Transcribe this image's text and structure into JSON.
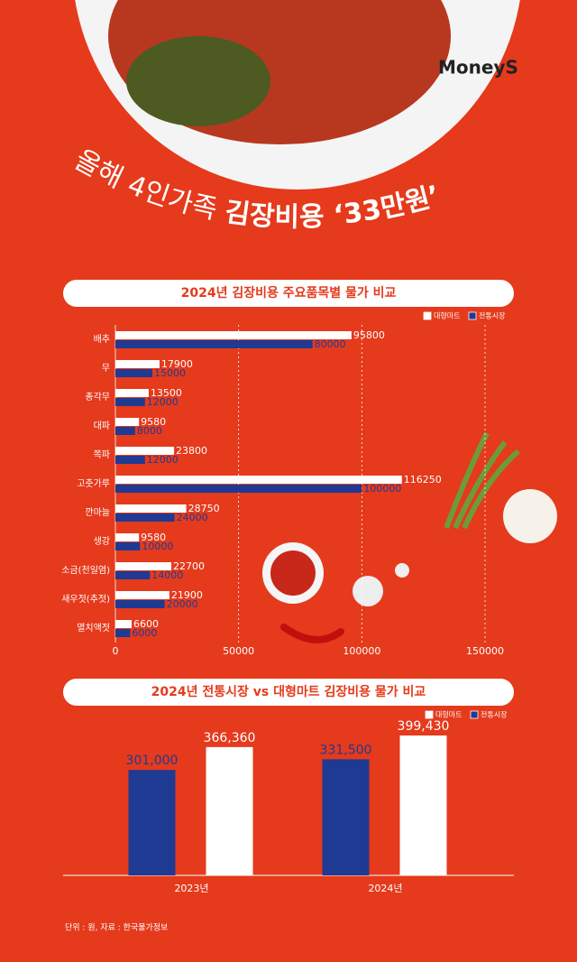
{
  "header": {
    "logo": "MoneyS",
    "title_light": "올해 4인가족 ",
    "title_bold": "김장비용 ‘33만원’"
  },
  "chart_data": [
    {
      "type": "hbar",
      "title": "2024년 김장비용 주요품목별 물가 비교",
      "categories": [
        "배추",
        "무",
        "총각무",
        "대파",
        "쪽파",
        "고춧가루",
        "깐마늘",
        "생강",
        "소금(천일염)",
        "새우젓(추젓)",
        "멸치액젓"
      ],
      "series": [
        {
          "name": "대형마트",
          "color": "#ffffff",
          "values": [
            95800,
            17900,
            13500,
            9580,
            23800,
            116250,
            28750,
            9580,
            22700,
            21900,
            6600
          ]
        },
        {
          "name": "전통시장",
          "color": "#1f3a93",
          "values": [
            80000,
            15000,
            12000,
            8000,
            12000,
            100000,
            24000,
            10000,
            14000,
            20000,
            6000
          ]
        }
      ],
      "xlim": [
        0,
        150000
      ],
      "xticks": [
        0,
        50000,
        100000,
        150000
      ],
      "grid": true
    },
    {
      "type": "bar",
      "title": "2024년 전통시장 vs 대형마트 김장비용 물가 비교",
      "categories": [
        "2023년",
        "2024년"
      ],
      "series": [
        {
          "name": "대형마트",
          "color": "#ffffff",
          "values": [
            366360,
            399430
          ],
          "value_labels": [
            "366,360",
            "399,430"
          ]
        },
        {
          "name": "전통시장",
          "color": "#1f3a93",
          "values": [
            301000,
            331500
          ],
          "value_labels": [
            "301,000",
            "331,500"
          ]
        }
      ]
    }
  ],
  "source": "단위 : 원, 자료 : 한국물가정보"
}
